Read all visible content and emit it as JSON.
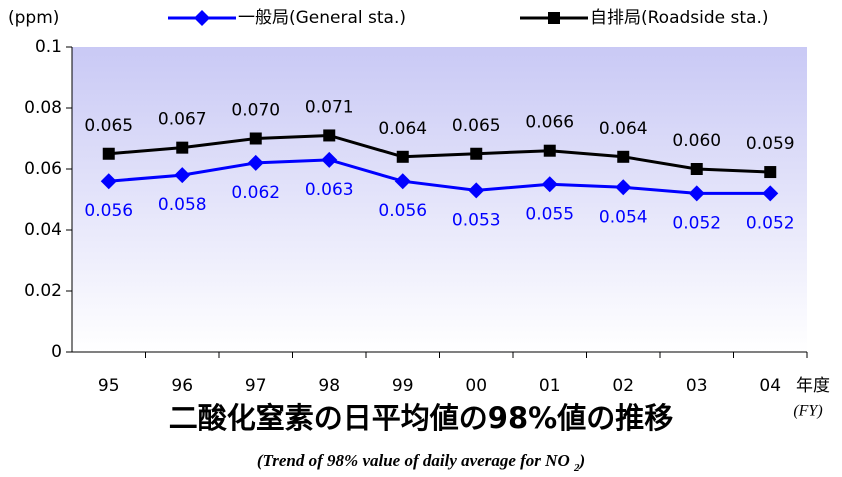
{
  "chart_data": {
    "type": "line",
    "y_unit": "(ppm)",
    "x_label": "年度",
    "x_label_en": "(FY)",
    "title": "二酸化窒素の日平均値の98%値の推移",
    "subtitle": [
      "(Trend of 98% value of daily average  for NO ",
      "2",
      ")"
    ],
    "categories": [
      "95",
      "96",
      "97",
      "98",
      "99",
      "00",
      "01",
      "02",
      "03",
      "04"
    ],
    "series": [
      {
        "name": "一般局(General sta.)",
        "color": "#0000ff",
        "marker": "diamond",
        "values": [
          0.056,
          0.058,
          0.062,
          0.063,
          0.056,
          0.053,
          0.055,
          0.054,
          0.052,
          0.052
        ]
      },
      {
        "name": "自排局(Roadside sta.)",
        "color": "#000000",
        "marker": "square",
        "values": [
          0.065,
          0.067,
          0.07,
          0.071,
          0.064,
          0.065,
          0.066,
          0.064,
          0.06,
          0.059
        ],
        "value_labels": [
          "0.065",
          "0.067",
          "0.070",
          "0.071",
          "0.064",
          "0.065",
          "0.066",
          "0.064",
          "0.060",
          "0.059"
        ]
      }
    ],
    "ylim": [
      0,
      0.1
    ],
    "yticks": [
      0,
      0.02,
      0.04,
      0.06,
      0.08,
      0.1
    ]
  }
}
